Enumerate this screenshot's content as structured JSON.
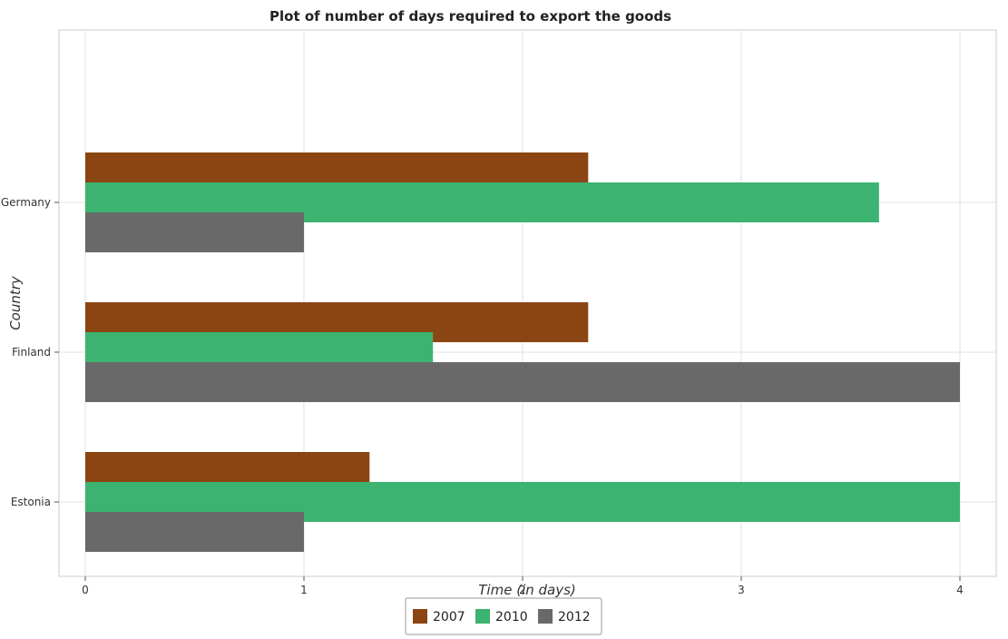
{
  "chart_data": {
    "type": "bar",
    "orientation": "horizontal",
    "title": "Plot of number of days required to export the goods",
    "xlabel": "Time (in days)",
    "ylabel": "Country",
    "categories": [
      "Estonia",
      "Finland",
      "Germany"
    ],
    "series": [
      {
        "name": "2007",
        "color": "#8b4513",
        "values": [
          1.3,
          2.3,
          2.3
        ]
      },
      {
        "name": "2010",
        "color": "#3cb371",
        "values": [
          4.0,
          1.59,
          3.63
        ]
      },
      {
        "name": "2012",
        "color": "#696969",
        "values": [
          1.0,
          4.0,
          1.0
        ]
      }
    ],
    "xlim": [
      0,
      4.2
    ],
    "xticks": [
      0,
      1,
      2,
      3,
      4
    ],
    "grid": true,
    "legend_position": "bottom-center"
  }
}
